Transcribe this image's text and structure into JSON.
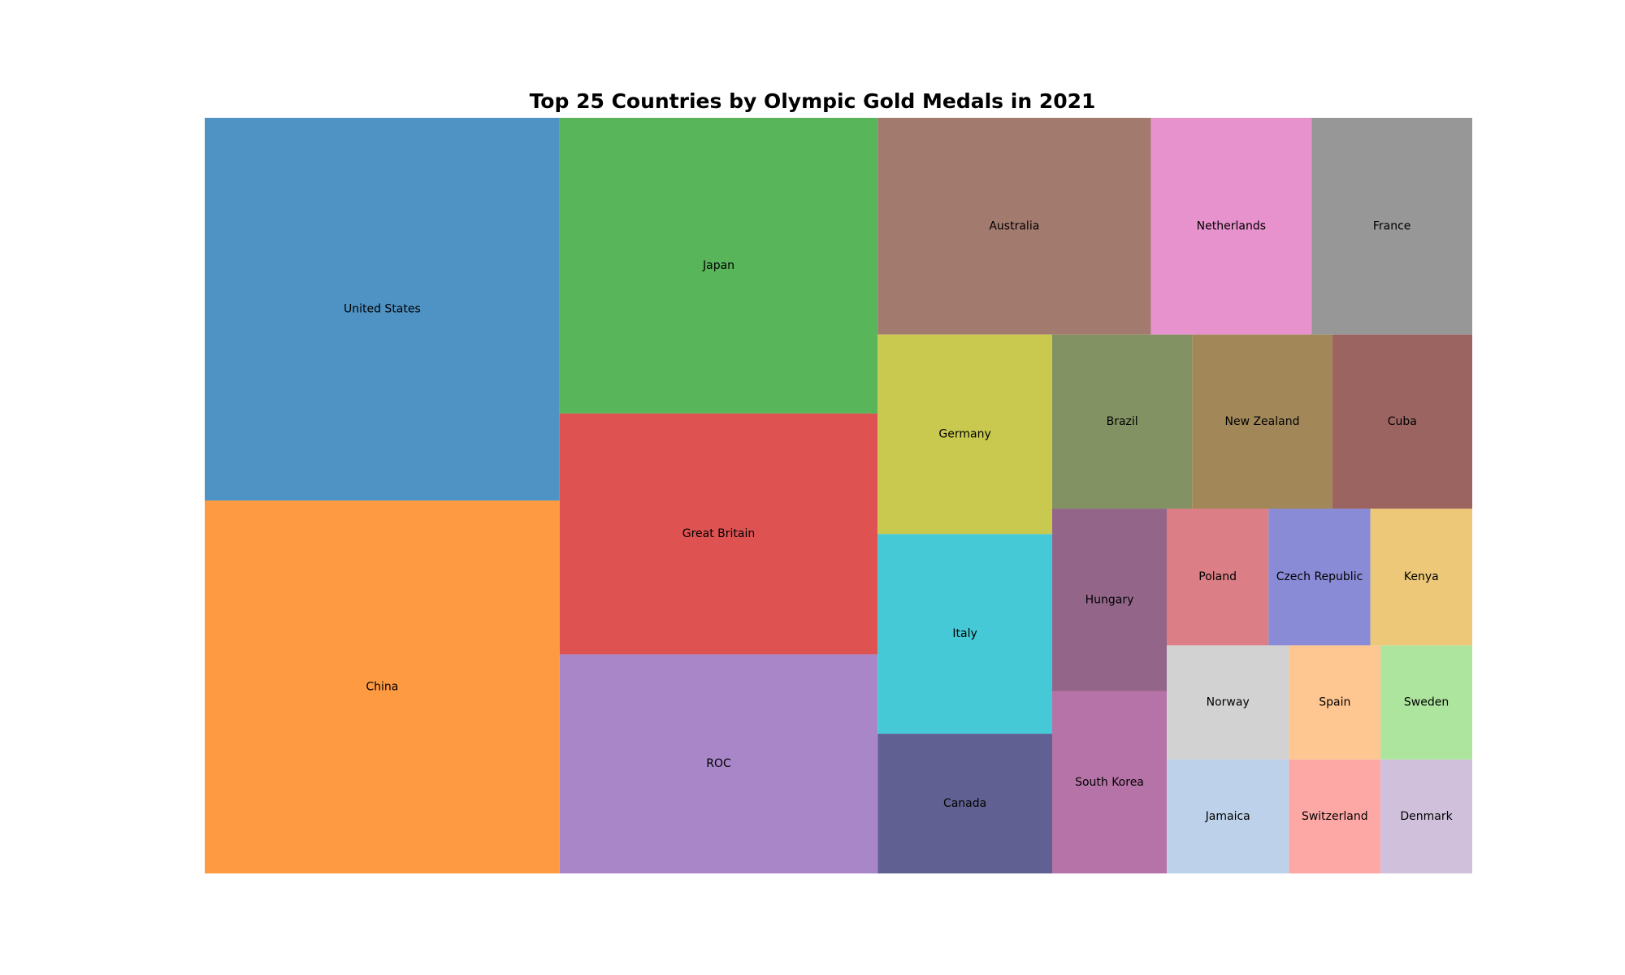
{
  "chart_data": {
    "type": "treemap",
    "title": "Top 25 Countries by Olympic Gold Medals in 2021",
    "xlabel": "",
    "ylabel": "",
    "grid": false,
    "legend": "none",
    "items": [
      {
        "label": "United States",
        "value": 39,
        "color": "#4e93c4"
      },
      {
        "label": "China",
        "value": 38,
        "color": "#fe9a41"
      },
      {
        "label": "Japan",
        "value": 27,
        "color": "#58b559"
      },
      {
        "label": "Great Britain",
        "value": 22,
        "color": "#de5252"
      },
      {
        "label": "ROC",
        "value": 20,
        "color": "#a886c8"
      },
      {
        "label": "Australia",
        "value": 17,
        "color": "#a37a6e"
      },
      {
        "label": "Netherlands",
        "value": 10,
        "color": "#e791cd"
      },
      {
        "label": "France",
        "value": 10,
        "color": "#979797"
      },
      {
        "label": "Germany",
        "value": 10,
        "color": "#c9c950"
      },
      {
        "label": "Italy",
        "value": 10,
        "color": "#45c9d6"
      },
      {
        "label": "Canada",
        "value": 7,
        "color": "#606192"
      },
      {
        "label": "Brazil",
        "value": 7,
        "color": "#839262"
      },
      {
        "label": "New Zealand",
        "value": 7,
        "color": "#a28859"
      },
      {
        "label": "Cuba",
        "value": 7,
        "color": "#9c6461"
      },
      {
        "label": "Hungary",
        "value": 6,
        "color": "#936689"
      },
      {
        "label": "South Korea",
        "value": 6,
        "color": "#b673a7"
      },
      {
        "label": "Poland",
        "value": 4,
        "color": "#dc7e85"
      },
      {
        "label": "Czech Republic",
        "value": 4,
        "color": "#8a8bd6"
      },
      {
        "label": "Kenya",
        "value": 4,
        "color": "#ecc878"
      },
      {
        "label": "Norway",
        "value": 4,
        "color": "#d2d2d2"
      },
      {
        "label": "Jamaica",
        "value": 4,
        "color": "#bed1ea"
      },
      {
        "label": "Spain",
        "value": 3,
        "color": "#fec690"
      },
      {
        "label": "Sweden",
        "value": 3,
        "color": "#ade59e"
      },
      {
        "label": "Switzerland",
        "value": 3,
        "color": "#fea8a6"
      },
      {
        "label": "Denmark",
        "value": 3,
        "color": "#d0c0db"
      }
    ]
  }
}
